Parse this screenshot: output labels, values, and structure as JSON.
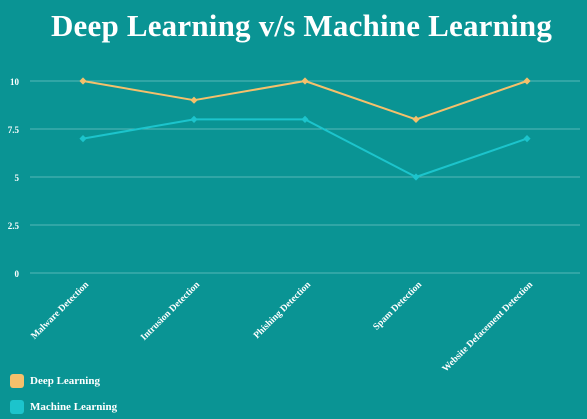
{
  "chart_data": {
    "type": "line",
    "title": "Deep Learning v/s Machine Learning",
    "xlabel": "",
    "ylabel": "",
    "categories": [
      "Malware Detection",
      "Intrusion Detection",
      "Phishing Detection",
      "Spam Detection",
      "Website Defacement Detection"
    ],
    "yticks": [
      "0",
      "2.5",
      "5",
      "7.5",
      "10"
    ],
    "ylim": [
      0,
      10
    ],
    "grid": true,
    "legend": "bottom-left",
    "series": [
      {
        "name": "Deep Learning",
        "values": [
          10,
          9,
          10,
          8,
          10
        ],
        "color": "#f5c06b"
      },
      {
        "name": "Machine Learning",
        "values": [
          7,
          8,
          8,
          5,
          7
        ],
        "color": "#1cc4cc"
      }
    ]
  },
  "colors": {
    "background": "#0a9494",
    "grid": "#55b9b9",
    "text": "#ffffff"
  }
}
